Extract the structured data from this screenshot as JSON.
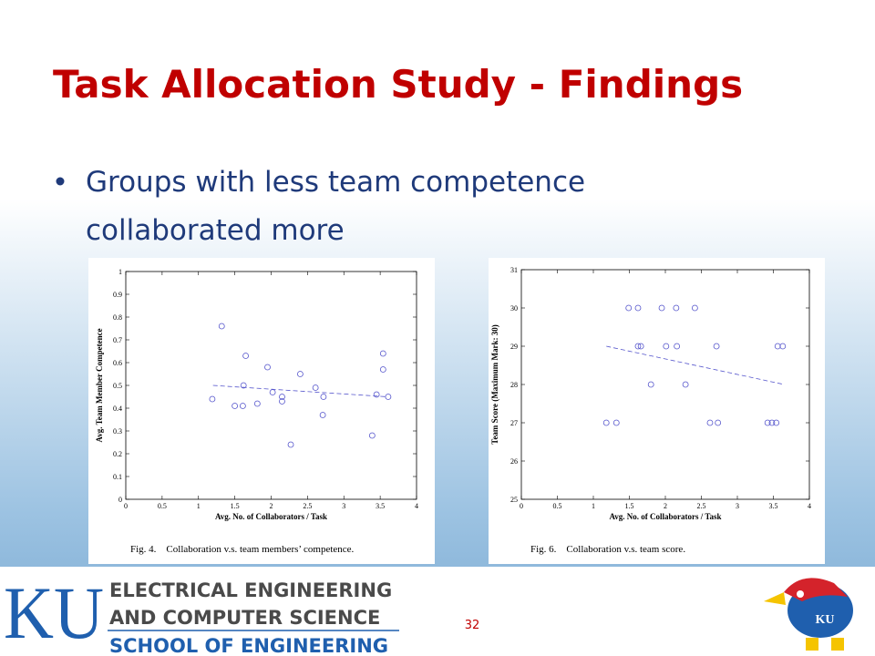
{
  "slide": {
    "title": "Task Allocation Study - Findings",
    "bullets": [
      "Groups with less team competence",
      "collaborated more"
    ],
    "page_number": "32"
  },
  "footer": {
    "logo": "KU",
    "lines": [
      "ELECTRICAL ENGINEERING",
      "AND COMPUTER SCIENCE",
      "SCHOOL OF ENGINEERING"
    ]
  },
  "chart_data": [
    {
      "type": "scatter",
      "x_label": "Avg. No. of Collaborators / Task",
      "y_label": "Avg. Team Member Competence",
      "caption": "Fig. 4.    Collaboration v.s. team members’ competence.",
      "color": "#5555cc",
      "x": [
        1.19,
        1.32,
        1.5,
        1.61,
        1.62,
        1.65,
        1.81,
        1.95,
        2.02,
        2.15,
        2.15,
        2.27,
        2.4,
        2.61,
        2.71,
        2.72,
        3.39,
        3.45,
        3.54,
        3.54,
        3.61
      ],
      "values": [
        0.44,
        0.76,
        0.41,
        0.41,
        0.5,
        0.63,
        0.42,
        0.58,
        0.47,
        0.45,
        0.43,
        0.24,
        0.55,
        0.49,
        0.37,
        0.45,
        0.28,
        0.46,
        0.57,
        0.64,
        0.45
      ],
      "trend": {
        "x": [
          1.2,
          3.6
        ],
        "values": [
          0.5,
          0.45
        ]
      },
      "xlim": [
        0,
        4
      ],
      "xticks": [
        0,
        0.5,
        1,
        1.5,
        2,
        2.5,
        3,
        3.5,
        4
      ],
      "ylim": [
        0,
        1
      ],
      "yticks": [
        0,
        0.1,
        0.2,
        0.3,
        0.4,
        0.5,
        0.6,
        0.7,
        0.8,
        0.9,
        1
      ]
    },
    {
      "type": "scatter",
      "x_label": "Avg. No. of Collaborators / Task",
      "y_label": "Team Score (Maximum Mark: 30)",
      "caption": "Fig. 6.    Collaboration v.s. team score.",
      "color": "#5555cc",
      "x": [
        1.18,
        1.32,
        1.49,
        1.62,
        1.62,
        1.66,
        1.8,
        1.95,
        2.01,
        2.15,
        2.16,
        2.28,
        2.41,
        2.62,
        2.71,
        2.73,
        3.42,
        3.48,
        3.54,
        3.56,
        3.63
      ],
      "values": [
        27,
        27,
        30,
        30,
        29,
        29,
        28,
        30,
        29,
        30,
        29,
        28,
        30,
        27,
        29,
        27,
        27,
        27,
        27,
        29,
        29
      ],
      "trend": {
        "x": [
          1.18,
          3.65
        ],
        "values": [
          29,
          28
        ]
      },
      "xlim": [
        0,
        4
      ],
      "xticks": [
        0,
        0.5,
        1,
        1.5,
        2,
        2.5,
        3,
        3.5,
        4
      ],
      "ylim": [
        25,
        31
      ],
      "yticks": [
        25,
        26,
        27,
        28,
        29,
        30,
        31
      ]
    }
  ]
}
